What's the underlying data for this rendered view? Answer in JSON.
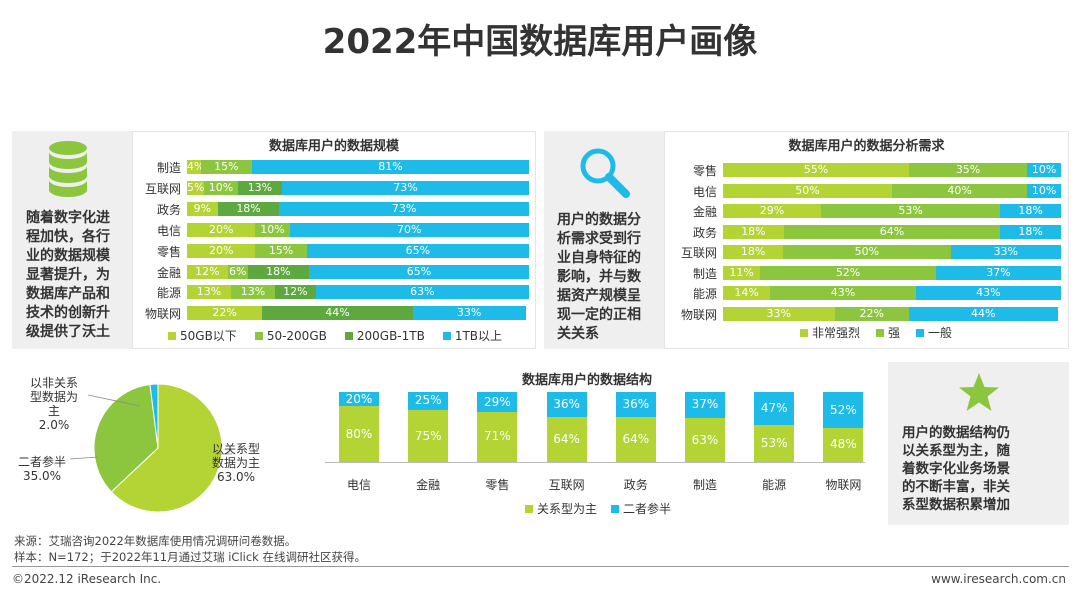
{
  "title": "2022年中国数据库用户画像",
  "colors": {
    "yellow_green": "#b4d334",
    "mid_green": "#8cc63f",
    "dark_green": "#5ea93f",
    "cyan": "#1ebbe8",
    "star": "#8cc63f"
  },
  "panel1": {
    "icon": "database-icon",
    "desc_lines": [
      "随着数字化进",
      "程加快，各行",
      "业的数据规模",
      "显著提升，为",
      "数据库产品和",
      "技术的创新升",
      "级提供了沃土"
    ]
  },
  "panel2": {
    "icon": "search-icon",
    "desc_lines": [
      "用户的数据分",
      "析需求受到行",
      "业自身特征的",
      "影响，并与数",
      "据资产规模呈",
      "现一定的正相",
      "关关系"
    ]
  },
  "panel3": {
    "icon": "star-icon",
    "desc_lines": [
      "用户的数据结构仍",
      "以关系型为主，随",
      "着数字化业务场景",
      "的不断丰富，非关",
      "系型数据积累增加"
    ]
  },
  "chart_data": [
    {
      "type": "bar",
      "orientation": "horizontal-stacked",
      "title": "数据库用户的数据规模",
      "categories": [
        "制造",
        "互联网",
        "政务",
        "电信",
        "零售",
        "金融",
        "能源",
        "物联网"
      ],
      "series": [
        {
          "name": "50GB以下",
          "color": "#b4d334",
          "values": [
            4,
            5,
            9,
            20,
            20,
            12,
            13,
            22
          ]
        },
        {
          "name": "50-200GB",
          "color": "#8cc63f",
          "values": [
            15,
            10,
            0,
            10,
            15,
            6,
            13,
            0
          ]
        },
        {
          "name": "200GB-1TB",
          "color": "#5ea93f",
          "values": [
            0,
            13,
            18,
            0,
            0,
            18,
            12,
            44
          ]
        },
        {
          "name": "1TB以上",
          "color": "#1ebbe8",
          "values": [
            81,
            73,
            73,
            70,
            65,
            65,
            63,
            33
          ]
        }
      ],
      "labels": [
        [
          "4%",
          "15%",
          "",
          "81%"
        ],
        [
          "5%",
          "10%",
          "13%",
          "73%"
        ],
        [
          "9%",
          "",
          "18%",
          "73%"
        ],
        [
          "20%",
          "10%",
          "",
          "70%"
        ],
        [
          "20%",
          "15%",
          "",
          "65%"
        ],
        [
          "12%",
          "6%",
          "18%",
          "65%"
        ],
        [
          "13%",
          "13%",
          "12%",
          "63%"
        ],
        [
          "22%",
          "",
          "44%",
          "33%"
        ]
      ],
      "legend": [
        "50GB以下",
        "50-200GB",
        "200GB-1TB",
        "1TB以上"
      ]
    },
    {
      "type": "bar",
      "orientation": "horizontal-stacked",
      "title": "数据库用户的数据分析需求",
      "categories": [
        "零售",
        "电信",
        "金融",
        "政务",
        "互联网",
        "制造",
        "能源",
        "物联网"
      ],
      "series": [
        {
          "name": "非常强烈",
          "color": "#b4d334",
          "values": [
            55,
            50,
            29,
            18,
            18,
            11,
            14,
            33
          ]
        },
        {
          "name": "强",
          "color": "#8cc63f",
          "values": [
            35,
            40,
            53,
            64,
            50,
            52,
            43,
            22
          ]
        },
        {
          "name": "一般",
          "color": "#1ebbe8",
          "values": [
            10,
            10,
            18,
            18,
            33,
            37,
            43,
            44
          ]
        }
      ],
      "legend": [
        "非常强烈",
        "强",
        "一般"
      ]
    },
    {
      "type": "pie",
      "slices": [
        {
          "name": "以关系型数据为主",
          "value": 63.0,
          "label_lines": [
            "以关系型",
            "数据为主",
            "63.0%"
          ],
          "color": "#b4d334"
        },
        {
          "name": "二者参半",
          "value": 35.0,
          "label_lines": [
            "二者参半",
            "35.0%"
          ],
          "color": "#8cc63f"
        },
        {
          "name": "以非关系型数据为主",
          "value": 2.0,
          "label_lines": [
            "以非关系",
            "型数据为",
            "主",
            "2.0%"
          ],
          "color": "#1ebbe8"
        }
      ]
    },
    {
      "type": "bar",
      "orientation": "vertical-stacked",
      "title": "数据库用户的数据结构",
      "categories": [
        "电信",
        "金融",
        "零售",
        "互联网",
        "政务",
        "制造",
        "能源",
        "物联网"
      ],
      "series": [
        {
          "name": "关系型为主",
          "color": "#b4d334",
          "values": [
            80,
            75,
            71,
            64,
            64,
            63,
            53,
            48
          ]
        },
        {
          "name": "二者参半",
          "color": "#1ebbe8",
          "values": [
            20,
            25,
            29,
            36,
            36,
            37,
            47,
            52
          ]
        }
      ],
      "legend": [
        "关系型为主",
        "二者参半"
      ]
    }
  ],
  "footer": {
    "source": "来源：艾瑞咨询2022年数据库使用情况调研问卷数据。",
    "sample": "样本：N=172；于2022年11月通过艾瑞 iClick 在线调研社区获得。",
    "copyright": "©2022.12 iResearch Inc.",
    "website": "www.iresearch.com.cn"
  }
}
